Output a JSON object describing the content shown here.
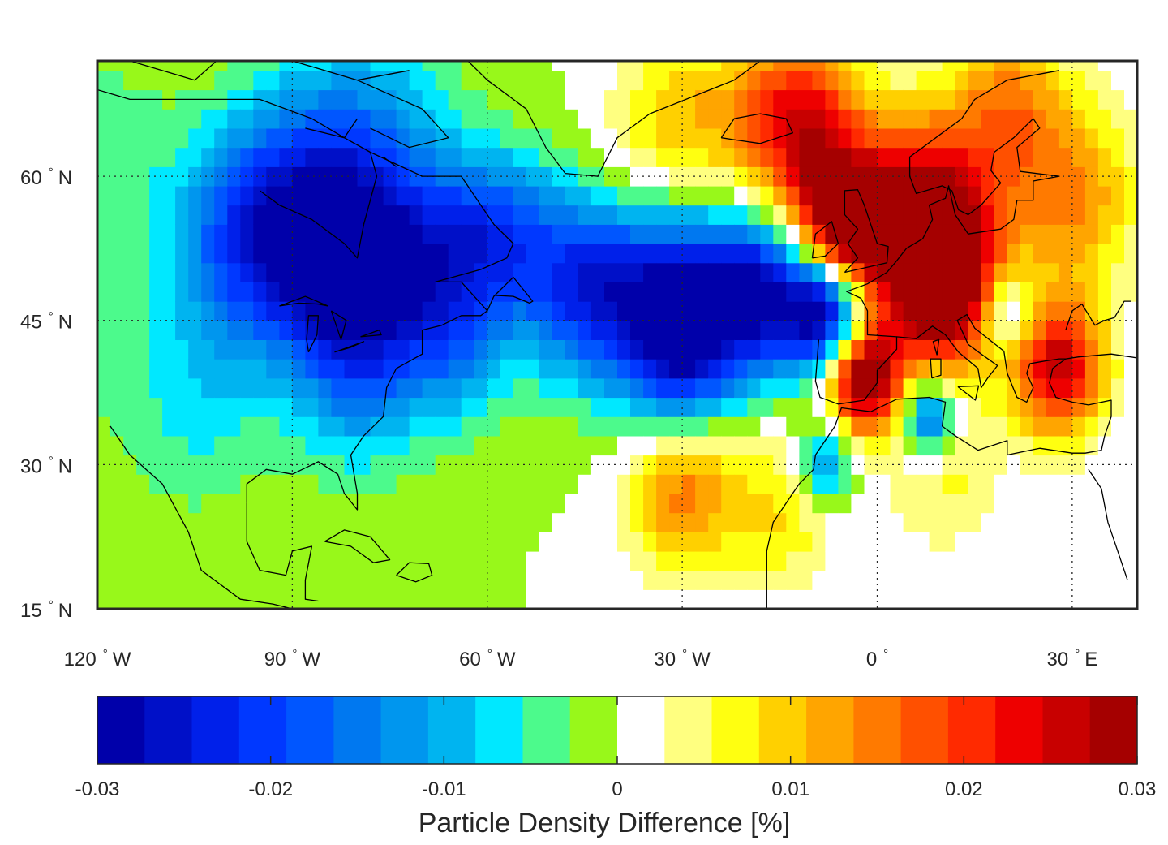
{
  "map": {
    "lon_range": [
      -120,
      40
    ],
    "lat_range": [
      15,
      72
    ],
    "lat_ticks": [
      {
        "value": 60,
        "deg": "60",
        "hemi": "N"
      },
      {
        "value": 45,
        "deg": "45",
        "hemi": "N"
      },
      {
        "value": 30,
        "deg": "30",
        "hemi": "N"
      },
      {
        "value": 15,
        "deg": "15",
        "hemi": "N"
      }
    ],
    "lon_ticks": [
      {
        "value": -120,
        "deg": "120",
        "hemi": "W"
      },
      {
        "value": -90,
        "deg": "90",
        "hemi": "W"
      },
      {
        "value": -60,
        "deg": "60",
        "hemi": "W"
      },
      {
        "value": -30,
        "deg": "30",
        "hemi": "W"
      },
      {
        "value": 0,
        "deg": "0",
        "hemi": ""
      },
      {
        "value": 30,
        "deg": "30",
        "hemi": "E"
      }
    ],
    "degree_symbol": "°"
  },
  "colorbar": {
    "label": "Particle Density Difference [%]",
    "min": -0.03,
    "max": 0.03,
    "ticks": [
      {
        "value": -0.03,
        "label": "-0.03"
      },
      {
        "value": -0.02,
        "label": "-0.02"
      },
      {
        "value": -0.01,
        "label": "-0.01"
      },
      {
        "value": 0,
        "label": "0"
      },
      {
        "value": 0.01,
        "label": "0.01"
      },
      {
        "value": 0.02,
        "label": "0.02"
      },
      {
        "value": 0.03,
        "label": "0.03"
      }
    ],
    "colors": [
      "#0000aa",
      "#0010c8",
      "#0020ea",
      "#0038ff",
      "#0056ff",
      "#0078f0",
      "#0096ee",
      "#00b4f0",
      "#00e8ff",
      "#4cfa8c",
      "#98f81a",
      "#ffffff",
      "#ffff80",
      "#ffff10",
      "#ffd000",
      "#ffa500",
      "#ff7a00",
      "#ff5000",
      "#ff2a00",
      "#ee0000",
      "#c80000",
      "#a50000"
    ]
  },
  "field": {
    "blobs": [
      {
        "lon": -125,
        "lat": 44,
        "v": -0.005,
        "s": 7
      },
      {
        "lon": -120,
        "lat": 62,
        "v": -0.005,
        "s": 8
      },
      {
        "lon": -75,
        "lat": 68,
        "v": -0.005,
        "s": 8
      },
      {
        "lon": -105,
        "lat": 36,
        "v": -0.006,
        "s": 8
      },
      {
        "lon": -85,
        "lat": 57,
        "v": -0.022,
        "s": 9
      },
      {
        "lon": -97,
        "lat": 53,
        "v": -0.017,
        "s": 8
      },
      {
        "lon": -80,
        "lat": 48,
        "v": -0.018,
        "s": 7
      },
      {
        "lon": -68,
        "lat": 52,
        "v": -0.015,
        "s": 7
      },
      {
        "lon": -58,
        "lat": 54,
        "v": -0.014,
        "s": 6
      },
      {
        "lon": -45,
        "lat": 49,
        "v": -0.022,
        "s": 7
      },
      {
        "lon": -32,
        "lat": 48,
        "v": -0.024,
        "s": 7
      },
      {
        "lon": -18,
        "lat": 48,
        "v": -0.027,
        "s": 6
      },
      {
        "lon": -8,
        "lat": 46,
        "v": -0.03,
        "s": 4
      },
      {
        "lon": -30,
        "lat": 40,
        "v": -0.016,
        "s": 6
      },
      {
        "lon": -80,
        "lat": 38,
        "v": -0.009,
        "s": 7
      },
      {
        "lon": -65,
        "lat": 42,
        "v": -0.01,
        "s": 6
      },
      {
        "lon": -12,
        "lat": 65,
        "v": 0.025,
        "s": 7
      },
      {
        "lon": -5,
        "lat": 55,
        "v": 0.032,
        "s": 5
      },
      {
        "lon": 8,
        "lat": 56,
        "v": 0.03,
        "s": 7
      },
      {
        "lon": 10,
        "lat": 48,
        "v": 0.028,
        "s": 6
      },
      {
        "lon": -2,
        "lat": 39,
        "v": 0.032,
        "s": 4
      },
      {
        "lon": 28,
        "lat": 40,
        "v": 0.026,
        "s": 5
      },
      {
        "lon": 30,
        "lat": 58,
        "v": 0.014,
        "s": 7
      },
      {
        "lon": 20,
        "lat": 68,
        "v": 0.013,
        "s": 6
      },
      {
        "lon": -30,
        "lat": 66,
        "v": 0.01,
        "s": 7
      },
      {
        "lon": -38,
        "lat": 55,
        "v": 0.005,
        "s": 7
      },
      {
        "lon": -30,
        "lat": 28,
        "v": 0.016,
        "s": 6
      },
      {
        "lon": -15,
        "lat": 25,
        "v": 0.008,
        "s": 6
      },
      {
        "lon": 10,
        "lat": 30,
        "v": 0.007,
        "s": 6
      },
      {
        "lon": 8,
        "lat": 35,
        "v": -0.022,
        "s": 3
      },
      {
        "lon": -8,
        "lat": 30,
        "v": -0.014,
        "s": 3
      },
      {
        "lon": 20,
        "lat": 46,
        "v": -0.012,
        "s": 3
      }
    ]
  },
  "coast": [
    [
      [
        -118,
        34
      ],
      [
        -115,
        31
      ],
      [
        -110,
        28
      ],
      [
        -106,
        23
      ],
      [
        -104,
        19
      ],
      [
        -98,
        16
      ],
      [
        -93,
        15.5
      ],
      [
        -90,
        15
      ]
    ],
    [
      [
        -97,
        26
      ],
      [
        -97,
        28
      ],
      [
        -94,
        29.5
      ],
      [
        -90,
        29
      ],
      [
        -86,
        30.3
      ],
      [
        -83,
        29
      ],
      [
        -82,
        27
      ],
      [
        -80,
        25.3
      ],
      [
        -80,
        27
      ],
      [
        -81,
        31
      ],
      [
        -79,
        33
      ],
      [
        -76,
        35
      ],
      [
        -75.5,
        38
      ],
      [
        -74,
        40
      ],
      [
        -70,
        41.5
      ],
      [
        -70,
        44
      ],
      [
        -67,
        44.5
      ],
      [
        -64,
        45.5
      ],
      [
        -61,
        45.5
      ],
      [
        -60,
        46
      ],
      [
        -64,
        49
      ],
      [
        -68,
        49
      ],
      [
        -61,
        50.3
      ],
      [
        -57,
        51.5
      ],
      [
        -56,
        53
      ],
      [
        -59,
        55
      ],
      [
        -61,
        57
      ],
      [
        -64,
        60
      ],
      [
        -70,
        60
      ],
      [
        -78,
        62.5
      ],
      [
        -82,
        64
      ],
      [
        -87,
        66
      ],
      [
        -95,
        68
      ],
      [
        -105,
        68
      ],
      [
        -115,
        68
      ],
      [
        -120,
        69
      ]
    ],
    [
      [
        -97,
        26
      ],
      [
        -97,
        22
      ],
      [
        -95,
        19
      ],
      [
        -91,
        18.5
      ],
      [
        -90,
        21
      ],
      [
        -87,
        21.5
      ],
      [
        -88,
        18
      ],
      [
        -88,
        16
      ],
      [
        -86,
        15.8
      ]
    ],
    [
      [
        -79,
        55
      ],
      [
        -77,
        60
      ],
      [
        -78,
        62.5
      ]
    ],
    [
      [
        -95,
        58.5
      ],
      [
        -92,
        57
      ],
      [
        -87,
        55.5
      ],
      [
        -82,
        53
      ],
      [
        -80,
        51.5
      ],
      [
        -79,
        55
      ]
    ],
    [
      [
        -60,
        46
      ],
      [
        -59,
        47.5
      ],
      [
        -56,
        49.5
      ],
      [
        -53,
        47
      ],
      [
        -53.5,
        46.8
      ],
      [
        -56,
        47.5
      ],
      [
        -59,
        47.6
      ]
    ],
    [
      [
        -73,
        78
      ],
      [
        -66,
        74
      ],
      [
        -60,
        70
      ],
      [
        -54,
        67
      ],
      [
        -51,
        63
      ],
      [
        -48,
        60.3
      ],
      [
        -43,
        60
      ],
      [
        -40,
        64
      ],
      [
        -35,
        66.5
      ],
      [
        -22,
        70
      ],
      [
        -18,
        72
      ]
    ],
    [
      [
        -24,
        64
      ],
      [
        -22,
        66
      ],
      [
        -18,
        66.5
      ],
      [
        -14,
        66
      ],
      [
        -13,
        64.5
      ],
      [
        -18,
        63.4
      ],
      [
        -22,
        63.8
      ],
      [
        -24,
        64
      ]
    ],
    [
      [
        -5,
        50
      ],
      [
        -3,
        51.5
      ],
      [
        -4.5,
        53
      ],
      [
        -3,
        54.5
      ],
      [
        -5,
        56
      ],
      [
        -5,
        58.5
      ],
      [
        -3,
        58.6
      ],
      [
        -2,
        57
      ],
      [
        -1,
        55
      ],
      [
        0,
        53
      ],
      [
        1.7,
        52.7
      ],
      [
        1.5,
        51
      ],
      [
        -5,
        50
      ]
    ],
    [
      [
        -10,
        51.5
      ],
      [
        -9.5,
        54
      ],
      [
        -7,
        55.3
      ],
      [
        -6,
        53
      ],
      [
        -8,
        51.7
      ],
      [
        -10,
        51.5
      ]
    ],
    [
      [
        -9,
        43
      ],
      [
        -9.5,
        38.7
      ],
      [
        -8.8,
        37
      ],
      [
        -6,
        36.3
      ],
      [
        -2,
        36.7
      ],
      [
        0,
        38.5
      ],
      [
        0,
        39.8
      ],
      [
        3,
        42
      ],
      [
        3,
        43.3
      ],
      [
        -1.5,
        43.5
      ],
      [
        -1.5,
        46
      ],
      [
        -2.5,
        47.3
      ],
      [
        -4.7,
        48
      ],
      [
        -1.5,
        48.8
      ],
      [
        1.5,
        50
      ],
      [
        3,
        51.2
      ],
      [
        4.5,
        52.5
      ],
      [
        7,
        53.5
      ],
      [
        8.5,
        55.5
      ],
      [
        8,
        57
      ],
      [
        10.5,
        57.7
      ],
      [
        11,
        59
      ],
      [
        12,
        56
      ],
      [
        14,
        54
      ],
      [
        19,
        54.5
      ],
      [
        21,
        55.5
      ],
      [
        21.5,
        57.5
      ],
      [
        24,
        57.5
      ],
      [
        24,
        59.5
      ],
      [
        28,
        60
      ],
      [
        22,
        60.5
      ],
      [
        21.5,
        63
      ],
      [
        25,
        65
      ],
      [
        24,
        66
      ],
      [
        21,
        64
      ],
      [
        18,
        62.5
      ],
      [
        17.5,
        60.6
      ],
      [
        19,
        59.3
      ],
      [
        16,
        57
      ],
      [
        14,
        56
      ],
      [
        12.5,
        56.5
      ],
      [
        11.5,
        58.5
      ],
      [
        10,
        59
      ],
      [
        6,
        58.2
      ],
      [
        5,
        60
      ],
      [
        5,
        62
      ],
      [
        8,
        63.5
      ],
      [
        13,
        66
      ],
      [
        15,
        68
      ],
      [
        20,
        70
      ],
      [
        28,
        71
      ]
    ],
    [
      [
        3,
        43.3
      ],
      [
        6,
        43.1
      ],
      [
        8.5,
        44.4
      ],
      [
        10.5,
        43.5
      ],
      [
        12.5,
        41.7
      ],
      [
        15.5,
        40
      ],
      [
        16,
        38
      ],
      [
        17,
        39
      ],
      [
        18.5,
        40.3
      ],
      [
        16,
        41.5
      ],
      [
        14,
        42.5
      ],
      [
        12.3,
        45
      ],
      [
        13.8,
        45.6
      ],
      [
        15,
        44.2
      ],
      [
        19.5,
        41.8
      ],
      [
        20,
        39.5
      ],
      [
        21.5,
        37
      ],
      [
        23,
        36.5
      ],
      [
        24,
        38
      ],
      [
        23,
        39.5
      ],
      [
        23.5,
        40.5
      ],
      [
        26,
        40.8
      ],
      [
        28,
        41
      ],
      [
        29,
        41
      ],
      [
        31,
        41.2
      ],
      [
        36,
        41.5
      ],
      [
        41,
        41
      ]
    ],
    [
      [
        29,
        41
      ],
      [
        27,
        40
      ],
      [
        26.5,
        38.5
      ],
      [
        27.5,
        37
      ],
      [
        30,
        36.5
      ],
      [
        32.5,
        36.2
      ],
      [
        36,
        36.7
      ],
      [
        36,
        35
      ],
      [
        35,
        33
      ],
      [
        34.5,
        31.5
      ],
      [
        32,
        31.2
      ],
      [
        30,
        31.2
      ],
      [
        25,
        31.7
      ],
      [
        20,
        31
      ],
      [
        20,
        32.5
      ],
      [
        15.5,
        31.5
      ],
      [
        12,
        33
      ],
      [
        10,
        34
      ],
      [
        10.5,
        36.5
      ],
      [
        8,
        37
      ],
      [
        3,
        36.8
      ],
      [
        -1,
        35.5
      ],
      [
        -5.5,
        35.9
      ],
      [
        -6.5,
        34
      ],
      [
        -9.5,
        31
      ],
      [
        -9.8,
        29.5
      ],
      [
        -12,
        28
      ],
      [
        -13,
        27
      ],
      [
        -16,
        24
      ],
      [
        -17,
        21
      ],
      [
        -17,
        15
      ]
    ],
    [
      [
        32.5,
        29.5
      ],
      [
        34.5,
        27.5
      ],
      [
        35.5,
        24
      ],
      [
        37,
        21
      ],
      [
        38.5,
        18
      ]
    ],
    [
      [
        29,
        44
      ],
      [
        30,
        46
      ],
      [
        31.5,
        46.7
      ],
      [
        33.5,
        44.5
      ],
      [
        35,
        45
      ],
      [
        36.5,
        45.3
      ],
      [
        38,
        47
      ],
      [
        39,
        47
      ]
    ],
    [
      [
        -85,
        22
      ],
      [
        -82,
        23.2
      ],
      [
        -78,
        22.5
      ],
      [
        -75,
        20.1
      ],
      [
        -77.5,
        19.8
      ],
      [
        -81,
        21.5
      ],
      [
        -85,
        22
      ]
    ],
    [
      [
        -74,
        18.5
      ],
      [
        -72,
        19.8
      ],
      [
        -69,
        19.7
      ],
      [
        -68.5,
        18.5
      ],
      [
        -71,
        17.8
      ],
      [
        -74,
        18.5
      ]
    ],
    [
      [
        9.2,
        41.4
      ],
      [
        9.5,
        43
      ],
      [
        8.6,
        42.8
      ],
      [
        9.2,
        41.4
      ]
    ],
    [
      [
        8.4,
        39
      ],
      [
        9.8,
        39.3
      ],
      [
        9.8,
        41
      ],
      [
        8.2,
        41
      ],
      [
        8.4,
        39
      ]
    ],
    [
      [
        12.4,
        38.1
      ],
      [
        15.6,
        38.2
      ],
      [
        15.1,
        36.7
      ],
      [
        12.4,
        38.1
      ]
    ],
    [
      [
        -92,
        46.5
      ],
      [
        -88,
        47.5
      ],
      [
        -84.5,
        46.5
      ],
      [
        -86,
        46.7
      ],
      [
        -89,
        46.8
      ],
      [
        -92,
        46.5
      ]
    ],
    [
      [
        -87.5,
        41.7
      ],
      [
        -86.2,
        43.5
      ],
      [
        -86,
        45.5
      ],
      [
        -87.5,
        45.5
      ],
      [
        -87.8,
        43
      ],
      [
        -87.5,
        41.7
      ]
    ],
    [
      [
        -84,
        46
      ],
      [
        -82.5,
        43
      ],
      [
        -81.7,
        45
      ],
      [
        -84,
        46
      ]
    ],
    [
      [
        -83.5,
        41.7
      ],
      [
        -79,
        42.8
      ],
      [
        -81,
        42.2
      ],
      [
        -83.5,
        41.7
      ]
    ],
    [
      [
        -79.5,
        43.3
      ],
      [
        -76.3,
        43.5
      ],
      [
        -76.6,
        44
      ],
      [
        -79.5,
        43.3
      ]
    ],
    [
      [
        -115,
        72
      ],
      [
        -105,
        70
      ],
      [
        -100,
        73
      ]
    ],
    [
      [
        -90,
        72
      ],
      [
        -80,
        70
      ],
      [
        -72,
        71
      ]
    ],
    [
      [
        -88,
        65
      ],
      [
        -82,
        64
      ],
      [
        -80,
        66
      ]
    ],
    [
      [
        -80,
        70
      ],
      [
        -70,
        67
      ],
      [
        -66,
        64
      ],
      [
        -72,
        63
      ],
      [
        -78,
        65
      ]
    ],
    [
      [
        -76,
        62
      ],
      [
        -74,
        61
      ]
    ]
  ]
}
